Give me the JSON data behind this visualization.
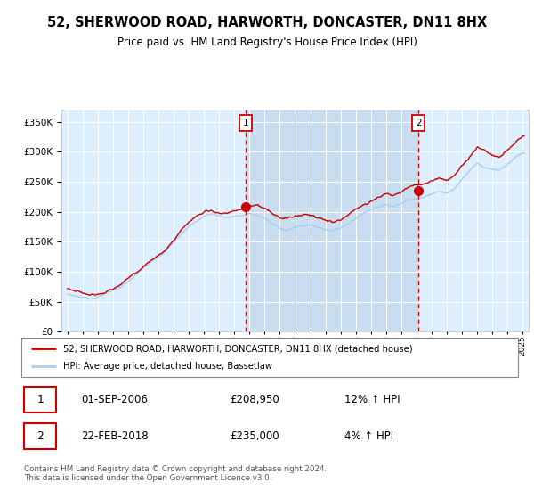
{
  "title": "52, SHERWOOD ROAD, HARWORTH, DONCASTER, DN11 8HX",
  "subtitle": "Price paid vs. HM Land Registry's House Price Index (HPI)",
  "ylim": [
    0,
    370000
  ],
  "plot_bg": "#ddeeff",
  "shade_color": "#c8ddf0",
  "legend_line1": "52, SHERWOOD ROAD, HARWORTH, DONCASTER, DN11 8HX (detached house)",
  "legend_line2": "HPI: Average price, detached house, Bassetlaw",
  "sale1_date": "01-SEP-2006",
  "sale1_price": "£208,950",
  "sale1_hpi": "12% ↑ HPI",
  "sale2_date": "22-FEB-2018",
  "sale2_price": "£235,000",
  "sale2_hpi": "4% ↑ HPI",
  "footer": "Contains HM Land Registry data © Crown copyright and database right 2024.\nThis data is licensed under the Open Government Licence v3.0.",
  "red_color": "#cc0000",
  "blue_color": "#aaccee",
  "marker1_x": 2006.75,
  "marker2_x": 2018.15,
  "marker1_y": 208950,
  "marker2_y": 235000,
  "xlim_left": 1994.6,
  "xlim_right": 2025.4
}
